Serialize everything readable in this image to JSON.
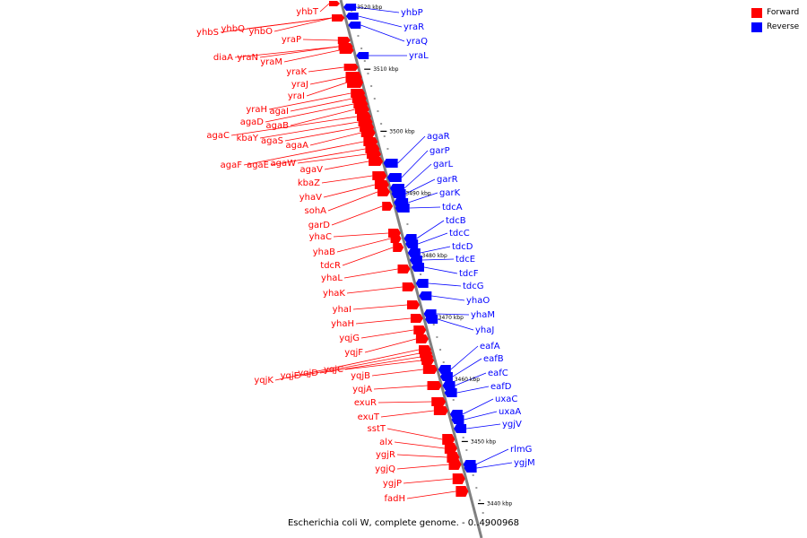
{
  "colors": {
    "forward": "#ff0000",
    "reverse": "#0000ff",
    "backbone": "#808080",
    "tick": "#000000"
  },
  "legend": [
    {
      "label": "Forward",
      "color": "#ff0000"
    },
    {
      "label": "Reverse",
      "color": "#0000ff"
    }
  ],
  "caption": "Escherichia coli W, complete genome. - 0..4900968",
  "axis": {
    "unit": "kbp",
    "range_kbp": [
      3437,
      3524
    ],
    "ticks": [
      {
        "kbp": 3520,
        "label": "3520 kbp"
      },
      {
        "kbp": 3510,
        "label": "3510 kbp"
      },
      {
        "kbp": 3500,
        "label": "3500 kbp"
      },
      {
        "kbp": 3490,
        "label": "3490 kbp"
      },
      {
        "kbp": 3480,
        "label": "3480 kbp"
      },
      {
        "kbp": 3470,
        "label": "3470 kbp"
      },
      {
        "kbp": 3460,
        "label": "3460 kbp"
      },
      {
        "kbp": 3450,
        "label": "3450 kbp"
      },
      {
        "kbp": 3440,
        "label": "3440 kbp"
      }
    ]
  },
  "forward_genes": [
    "yhbT",
    "yhbS",
    "yhbQ",
    "yhbO",
    "yraP",
    "diaA",
    "yraN",
    "yraM",
    "yraK",
    "yraJ",
    "yraI",
    "yraH",
    "agaI",
    "agaD",
    "agaB",
    "agaC",
    "kbaY",
    "agaS",
    "agaA",
    "agaF",
    "agaE",
    "agaW",
    "agaV",
    "kbaZ",
    "yhaV",
    "sohA",
    "garD",
    "yhaC",
    "yhaB",
    "tdcR",
    "yhaL",
    "yhaK",
    "yhaI",
    "yhaH",
    "yqjG",
    "yqjF",
    "yqjK",
    "yqjE",
    "yqjD",
    "yqjC",
    "yqjB",
    "yqjA",
    "exuR",
    "exuT",
    "sstT",
    "alx",
    "ygjR",
    "ygjQ",
    "ygjP",
    "fadH"
  ],
  "reverse_genes": [
    "yhbP",
    "yraR",
    "yraQ",
    "yraL",
    "agaR",
    "garP",
    "garL",
    "garR",
    "garK",
    "tdcA",
    "tdcB",
    "tdcC",
    "tdcD",
    "tdcE",
    "tdcF",
    "tdcG",
    "yhaO",
    "yhaM",
    "yhaJ",
    "eafA",
    "eafB",
    "eafC",
    "eafD",
    "uxaC",
    "uxaA",
    "ygjV",
    "rlmG",
    "ygjM"
  ]
}
